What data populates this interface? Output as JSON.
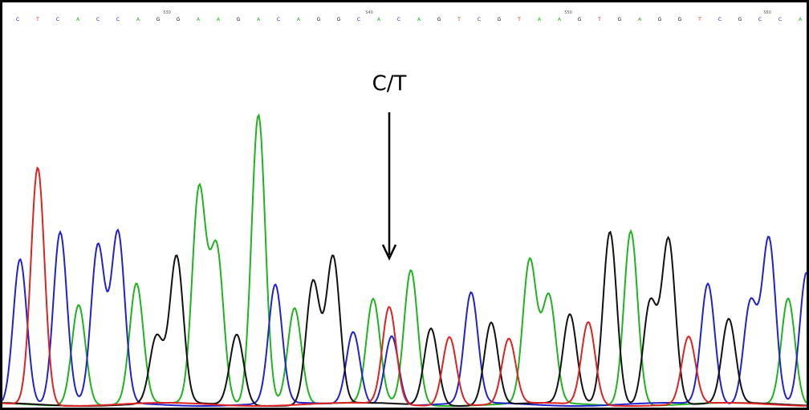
{
  "annotation": "C/T",
  "positions": [
    "530",
    "540",
    "550",
    "560"
  ],
  "bases": [
    "C",
    "T",
    "C",
    "A",
    "C",
    "C",
    "A",
    "G",
    "G",
    "A",
    "A",
    "G",
    "A",
    "C",
    "A",
    "G",
    "G",
    "C",
    "A",
    "C",
    "A",
    "G",
    "T",
    "C",
    "G",
    "T",
    "A",
    "A",
    "G",
    "T",
    "G",
    "A",
    "G",
    "G",
    "T",
    "C",
    "G",
    "C",
    "C",
    "A"
  ]
}
